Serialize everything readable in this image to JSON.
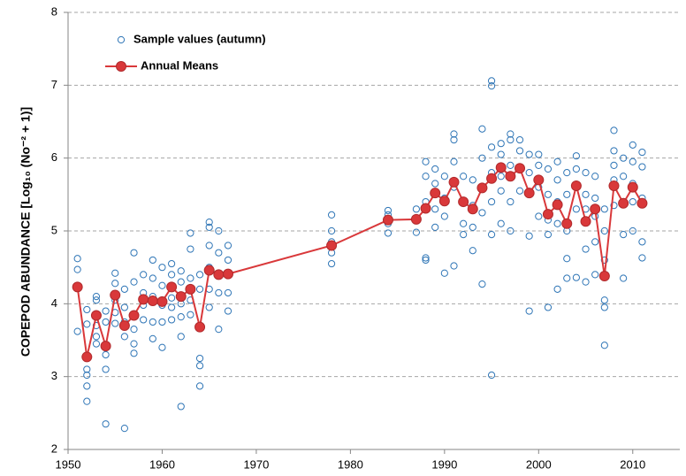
{
  "chart_data": {
    "type": "scatter",
    "y_label": "COPEPOD ABUNDANCE  [Log₁₀ (No⁻² + 1)]",
    "xlim": [
      1950,
      2015
    ],
    "xticks": [
      1950,
      1960,
      1970,
      1980,
      1990,
      2000,
      2010
    ],
    "ylim": [
      2,
      8
    ],
    "yticks": [
      2,
      3,
      4,
      5,
      6,
      7,
      8
    ],
    "grid": true,
    "legend": "upper left",
    "series": [
      {
        "name": "Sample values (autumn)",
        "color": "#2e75b6",
        "mode": "markers",
        "x": [
          1951,
          1951,
          1951,
          1952,
          1952,
          1952,
          1952,
          1952,
          1952,
          1953,
          1953,
          1953,
          1953,
          1953,
          1954,
          1954,
          1954,
          1954,
          1954,
          1955,
          1955,
          1955,
          1955,
          1955,
          1956,
          1956,
          1956,
          1956,
          1956,
          1957,
          1957,
          1957,
          1957,
          1957,
          1958,
          1958,
          1958,
          1958,
          1959,
          1959,
          1959,
          1959,
          1959,
          1960,
          1960,
          1960,
          1960,
          1960,
          1961,
          1961,
          1961,
          1961,
          1961,
          1962,
          1962,
          1962,
          1962,
          1962,
          1962,
          1963,
          1963,
          1963,
          1963,
          1963,
          1964,
          1964,
          1964,
          1964,
          1964,
          1964,
          1965,
          1965,
          1965,
          1965,
          1965,
          1965,
          1966,
          1966,
          1966,
          1966,
          1966,
          1967,
          1967,
          1967,
          1967,
          1967,
          1978,
          1978,
          1978,
          1978,
          1978,
          1984,
          1984,
          1984,
          1984,
          1987,
          1987,
          1987,
          1988,
          1988,
          1988,
          1988,
          1988,
          1989,
          1989,
          1989,
          1989,
          1990,
          1990,
          1990,
          1990,
          1991,
          1991,
          1991,
          1991,
          1991,
          1992,
          1992,
          1992,
          1992,
          1993,
          1993,
          1993,
          1993,
          1994,
          1994,
          1994,
          1994,
          1994,
          1995,
          1995,
          1995,
          1995,
          1995,
          1995,
          1995,
          1996,
          1996,
          1996,
          1996,
          1996,
          1997,
          1997,
          1997,
          1997,
          1997,
          1998,
          1998,
          1998,
          1998,
          1999,
          1999,
          1999,
          1999,
          1999,
          2000,
          2000,
          2000,
          2000,
          2001,
          2001,
          2001,
          2001,
          2001,
          2002,
          2002,
          2002,
          2002,
          2002,
          2003,
          2003,
          2003,
          2003,
          2003,
          2004,
          2004,
          2004,
          2004,
          2004,
          2005,
          2005,
          2005,
          2005,
          2005,
          2006,
          2006,
          2006,
          2006,
          2006,
          2007,
          2007,
          2007,
          2007,
          2007,
          2007,
          2008,
          2008,
          2008,
          2008,
          2008,
          2009,
          2009,
          2009,
          2009,
          2009,
          2010,
          2010,
          2010,
          2010,
          2010,
          2011,
          2011,
          2011,
          2011,
          2011
        ],
        "values": [
          4.62,
          4.47,
          3.62,
          3.72,
          3.1,
          3.02,
          2.87,
          2.66,
          3.92,
          4.1,
          3.7,
          3.55,
          3.45,
          4.05,
          3.9,
          3.3,
          3.1,
          2.35,
          3.75,
          4.42,
          4.28,
          4.05,
          3.88,
          3.73,
          4.2,
          3.95,
          3.75,
          3.55,
          2.29,
          4.7,
          4.3,
          3.65,
          3.45,
          3.32,
          4.4,
          4.15,
          3.98,
          3.78,
          4.6,
          4.35,
          4.1,
          3.75,
          3.52,
          4.5,
          4.25,
          3.98,
          3.75,
          3.4,
          4.55,
          4.4,
          4.08,
          3.95,
          3.78,
          4.45,
          4.3,
          4.0,
          3.82,
          3.55,
          2.59,
          4.97,
          4.75,
          4.35,
          4.05,
          3.85,
          4.4,
          4.2,
          3.7,
          3.25,
          3.15,
          2.87,
          5.12,
          5.05,
          4.8,
          4.5,
          4.2,
          3.95,
          5.0,
          4.7,
          4.4,
          4.15,
          3.65,
          4.8,
          4.6,
          4.4,
          4.15,
          3.9,
          5.22,
          5.0,
          4.85,
          4.7,
          4.55,
          5.28,
          5.22,
          5.1,
          4.97,
          5.3,
          5.15,
          4.98,
          5.95,
          5.75,
          5.4,
          4.63,
          4.6,
          5.85,
          5.65,
          5.3,
          5.05,
          5.75,
          5.45,
          5.2,
          4.42,
          6.33,
          6.25,
          5.95,
          5.6,
          4.52,
          5.75,
          5.4,
          5.1,
          4.95,
          5.7,
          5.35,
          5.05,
          4.73,
          6.4,
          6.0,
          5.6,
          5.25,
          4.27,
          7.06,
          6.99,
          6.15,
          5.8,
          5.4,
          4.95,
          3.02,
          6.2,
          6.05,
          5.75,
          5.55,
          5.1,
          6.33,
          6.25,
          5.9,
          5.4,
          5.0,
          6.25,
          6.1,
          5.85,
          5.55,
          6.05,
          5.8,
          5.5,
          4.93,
          3.9,
          6.05,
          5.9,
          5.6,
          5.2,
          5.85,
          5.5,
          5.15,
          4.95,
          3.95,
          5.95,
          5.7,
          5.4,
          5.1,
          4.2,
          5.8,
          5.5,
          5.0,
          4.62,
          4.35,
          6.03,
          5.85,
          5.6,
          5.3,
          4.36,
          5.8,
          5.5,
          5.3,
          4.75,
          4.3,
          5.75,
          5.45,
          5.2,
          4.85,
          4.4,
          5.3,
          5.0,
          4.6,
          4.05,
          3.95,
          3.43,
          6.38,
          6.1,
          5.9,
          5.7,
          5.35,
          6.0,
          5.75,
          5.4,
          4.95,
          4.35,
          6.18,
          5.95,
          5.65,
          5.4,
          5.0,
          6.08,
          5.88,
          5.45,
          4.85,
          4.63
        ]
      },
      {
        "name": "Annual Means",
        "color": "#d9383a",
        "mode": "lines+markers",
        "x": [
          1951,
          1952,
          1953,
          1954,
          1955,
          1956,
          1957,
          1958,
          1959,
          1960,
          1961,
          1962,
          1963,
          1964,
          1965,
          1966,
          1967,
          1978,
          1984,
          1987,
          1988,
          1989,
          1990,
          1991,
          1992,
          1993,
          1994,
          1995,
          1996,
          1997,
          1998,
          1999,
          2000,
          2001,
          2002,
          2003,
          2004,
          2005,
          2006,
          2007,
          2008,
          2009,
          2010,
          2011
        ],
        "values": [
          4.23,
          3.27,
          3.84,
          3.42,
          4.12,
          3.7,
          3.84,
          4.06,
          4.04,
          4.03,
          4.23,
          4.1,
          4.2,
          3.68,
          4.46,
          4.4,
          4.41,
          4.8,
          5.15,
          5.16,
          5.31,
          5.52,
          5.41,
          5.67,
          5.4,
          5.3,
          5.59,
          5.72,
          5.87,
          5.75,
          5.86,
          5.52,
          5.7,
          5.23,
          5.36,
          5.1,
          5.62,
          5.13,
          5.3,
          4.38,
          5.62,
          5.38,
          5.6,
          5.38
        ]
      }
    ]
  }
}
